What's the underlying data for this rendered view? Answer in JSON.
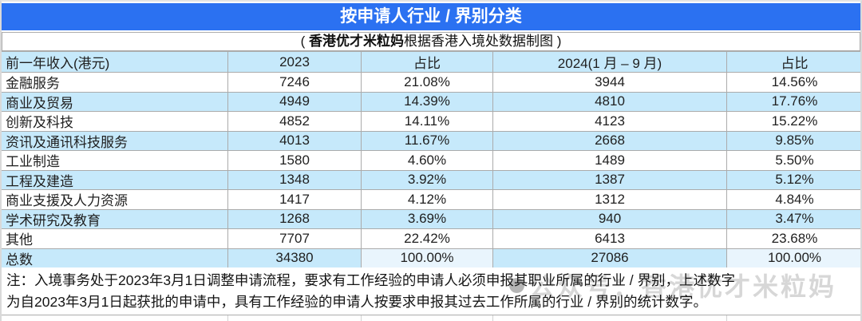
{
  "colors": {
    "title_bar_blue": "#2b71f1",
    "row_blue": "#c6e9fb",
    "total_percent_blue": "#e9f5fd",
    "border_gray": "#ababab"
  },
  "subtitle": {
    "open": "( ",
    "bold": "香港优才米粒妈",
    "rest": "根据香港入境处数据制图 )"
  },
  "watermark": {
    "text": "公众号：香港优才米粒妈"
  },
  "chart_data": {
    "type": "table",
    "title": "按申请人行业 / 界别分类",
    "subtitle": "( 香港优才米粒妈根据香港入境处数据制图 )",
    "columns": [
      "前一年收入(港元)",
      "2023",
      "占比",
      "2024(1 月 – 9 月)",
      "占比"
    ],
    "rows": [
      [
        "金融服务",
        "7246",
        "21.08%",
        "3944",
        "14.56%"
      ],
      [
        "商业及贸易",
        "4949",
        "14.39%",
        "4810",
        "17.76%"
      ],
      [
        "创新及科技",
        "4852",
        "14.11%",
        "4123",
        "15.22%"
      ],
      [
        "资讯及通讯科技服务",
        "4013",
        "11.67%",
        "2668",
        "9.85%"
      ],
      [
        "工业制造",
        "1580",
        "4.60%",
        "1489",
        "5.50%"
      ],
      [
        "工程及建造",
        "1348",
        "3.92%",
        "1387",
        "5.12%"
      ],
      [
        "商业支援及人力资源",
        "1417",
        "4.12%",
        "1312",
        "4.84%"
      ],
      [
        "学术研究及教育",
        "1268",
        "3.69%",
        "940",
        "3.47%"
      ],
      [
        "其他",
        "7707",
        "22.42%",
        "6413",
        "23.68%"
      ],
      [
        "总数",
        "34380",
        "100.00%",
        "27086",
        "100.00%"
      ]
    ],
    "notes": [
      "注：入境事务处于2023年3月1日调整申请流程，要求有工作经验的申请人必须申报其职业所属的行业 / 界别，上述数字",
      "为自2023年3月1日起获批的申请中，具有工作经验的申请人按要求申报其过去工作所属的行业 / 界别的统计数字。"
    ]
  }
}
